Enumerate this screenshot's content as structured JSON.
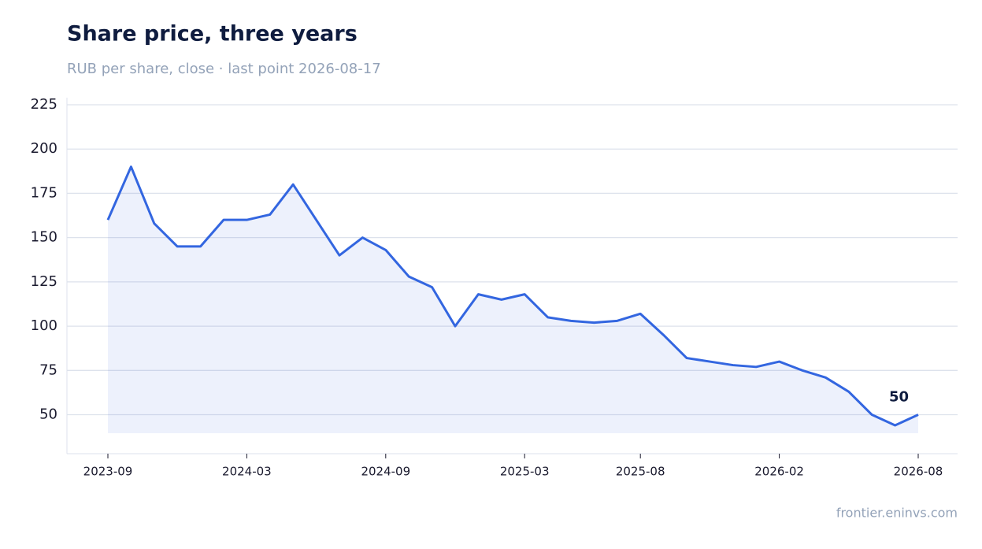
{
  "chart_data": {
    "type": "line",
    "title": "Share price, three years",
    "subtitle": "RUB per share, close · last point 2026-08-17",
    "source": "frontier.eninvs.com",
    "x": [
      "2023-09",
      "2023-10",
      "2023-11",
      "2023-12",
      "2024-01",
      "2024-02",
      "2024-03",
      "2024-04",
      "2024-05",
      "2024-06",
      "2024-07",
      "2024-08",
      "2024-09",
      "2024-10",
      "2024-11",
      "2024-12",
      "2025-01",
      "2025-02",
      "2025-03",
      "2025-04",
      "2025-05",
      "2025-06",
      "2025-07",
      "2025-08",
      "2025-09",
      "2025-10",
      "2025-11",
      "2025-12",
      "2026-01",
      "2026-02",
      "2026-03",
      "2026-04",
      "2026-05",
      "2026-06",
      "2026-07",
      "2026-08"
    ],
    "series": [
      {
        "name": "Close",
        "color": "#3366e0",
        "values": [
          160,
          190,
          158,
          145,
          145,
          160,
          160,
          163,
          180,
          160,
          140,
          150,
          143,
          128,
          122,
          100,
          118,
          115,
          118,
          105,
          103,
          102,
          103,
          107,
          95,
          82,
          80,
          78,
          77,
          80,
          75,
          71,
          63,
          50,
          44,
          50
        ]
      }
    ],
    "annotation_index": 35,
    "ylim": [
      28,
      229
    ],
    "yticks": [
      50,
      75,
      100,
      125,
      150,
      175,
      200,
      225
    ],
    "xticks": [
      "2023-09",
      "2024-03",
      "2024-09",
      "2025-03",
      "2025-08",
      "2026-02",
      "2026-08"
    ],
    "grid": true
  }
}
